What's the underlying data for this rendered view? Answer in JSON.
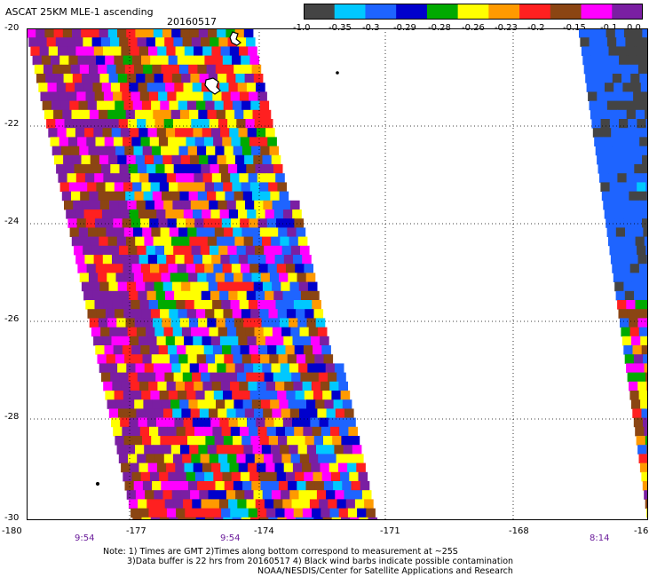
{
  "title": "ASCAT 25KM MLE-1 ascending",
  "date": "20160517",
  "colorbar": {
    "labels": [
      "-1.0",
      "-0.35",
      "-0.3",
      "-0.29",
      "-0.28",
      "-0.26",
      "-0.23",
      "-0.2",
      "-0.15",
      "-0.1",
      "0.0"
    ],
    "colors": [
      "#444444",
      "#00c8ff",
      "#1e64ff",
      "#0000cc",
      "#00aa00",
      "#ffff00",
      "#ff9a00",
      "#ff2020",
      "#8b4513",
      "#ff00ff",
      "#7a1fa2"
    ]
  },
  "axes": {
    "lat_labels": [
      "-20",
      "-22",
      "-24",
      "-26",
      "-28",
      "-30"
    ],
    "lon_labels": [
      "-180",
      "-177",
      "-174",
      "-171",
      "-168",
      "-16"
    ]
  },
  "pass_times": [
    "9:54",
    "9:54",
    "8:14"
  ],
  "notes": [
    "Note: 1) Times are GMT 2)Times along bottom correspond to measurement at ~25S",
    "3)Data buffer is 22 hrs from 20160517 4) Black wind barbs indicate possible contamination",
    "NOAA/NESDIS/Center for Satellite Applications and Research"
  ]
}
